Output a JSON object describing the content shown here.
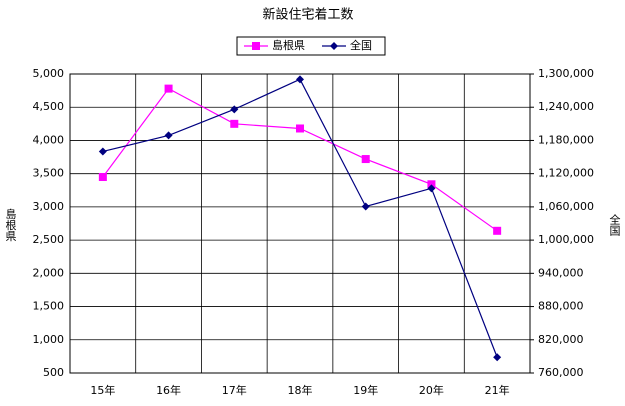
{
  "chart_data": {
    "type": "line",
    "title": "新設住宅着工数",
    "categories": [
      "15年",
      "16年",
      "17年",
      "18年",
      "19年",
      "20年",
      "21年"
    ],
    "y_label": "島根県",
    "y2_label": "全国",
    "series": [
      {
        "name": "島根県",
        "color": "#ff00ff",
        "marker": "square",
        "values": [
          3450,
          4780,
          4250,
          4180,
          3720,
          3340,
          2640
        ]
      },
      {
        "name": "全国",
        "color": "#000080",
        "marker": "diamond",
        "axis": "y2",
        "values": [
          1160083,
          1189049,
          1236175,
          1290391,
          1060741,
          1093519,
          788410
        ]
      }
    ],
    "ylim": [
      500,
      5000
    ],
    "yticks": [
      500,
      {
        "value": 1000,
        "label": "1,000"
      },
      {
        "value": 1500,
        "label": "1,500"
      },
      {
        "value": 2000,
        "label": "2,000"
      },
      {
        "value": 2500,
        "label": "2,500"
      },
      {
        "value": 3000,
        "label": "3,000"
      },
      {
        "value": 3500,
        "label": "3,500"
      },
      {
        "value": 4000,
        "label": "4,000"
      },
      {
        "value": 4500,
        "label": "4,500"
      },
      {
        "value": 5000,
        "label": "5,000"
      }
    ],
    "y2lim": [
      760000,
      1300000
    ],
    "y2ticks": [
      {
        "value": 760000,
        "label": "760,000"
      },
      {
        "value": 820000,
        "label": "820,000"
      },
      {
        "value": 880000,
        "label": "880,000"
      },
      {
        "value": 940000,
        "label": "940,000"
      },
      {
        "value": 1000000,
        "label": "1,000,000"
      },
      {
        "value": 1060000,
        "label": "1,060,000"
      },
      {
        "value": 1120000,
        "label": "1,120,000"
      },
      {
        "value": 1180000,
        "label": "1,180,000"
      },
      {
        "value": 1240000,
        "label": "1,240,000"
      },
      {
        "value": 1300000,
        "label": "1,300,000"
      }
    ],
    "grid": true
  }
}
